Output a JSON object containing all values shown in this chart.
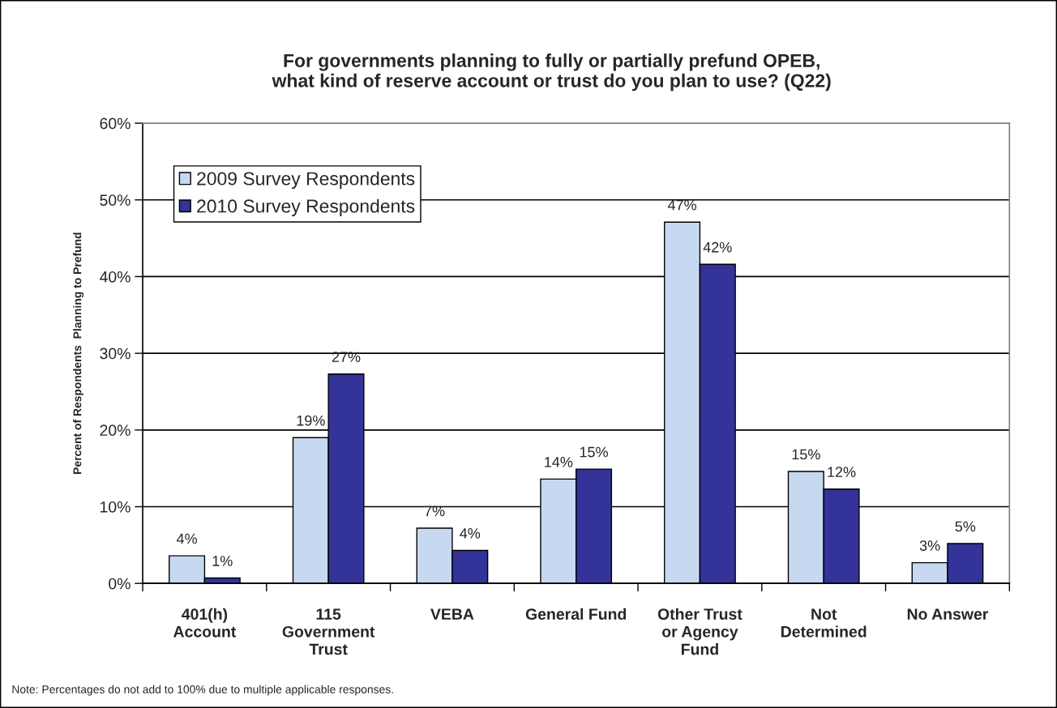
{
  "chart_data": {
    "type": "bar",
    "title": "For governments planning to fully or partially prefund OPEB,\nwhat kind of reserve account or trust do you plan to use? (Q22)",
    "ylabel": "Percent of Respondents  Planning to Prefund",
    "categories": [
      "401(h)\nAccount",
      "115\nGovernment\nTrust",
      "VEBA",
      "General Fund",
      "Other Trust\nor Agency\nFund",
      "Not\nDetermined",
      "No Answer"
    ],
    "series": [
      {
        "name": "2009 Survey Respondents",
        "color": "#c6d9f1",
        "values": [
          3.6,
          19.0,
          7.2,
          13.6,
          47.1,
          14.6,
          2.7
        ],
        "value_labels": [
          "4%",
          "19%",
          "7%",
          "14%",
          "47%",
          "15%",
          "3%"
        ]
      },
      {
        "name": "2010 Survey Respondents",
        "color": "#333399",
        "values": [
          0.7,
          27.3,
          4.3,
          14.9,
          41.6,
          12.3,
          5.2
        ],
        "value_labels": [
          "1%",
          "27%",
          "4%",
          "15%",
          "42%",
          "12%",
          "5%"
        ]
      }
    ],
    "ylim": [
      0,
      60
    ],
    "yticks": [
      {
        "value": 0,
        "label": "0%"
      },
      {
        "value": 10,
        "label": "10%"
      },
      {
        "value": 20,
        "label": "20%"
      },
      {
        "value": 30,
        "label": "30%"
      },
      {
        "value": 40,
        "label": "40%"
      },
      {
        "value": 50,
        "label": "50%"
      },
      {
        "value": 60,
        "label": "60%"
      }
    ],
    "grid": "y",
    "legend": "top left",
    "annotations": [
      "Note: Percentages do not add to 100% due to multiple applicable responses."
    ]
  }
}
